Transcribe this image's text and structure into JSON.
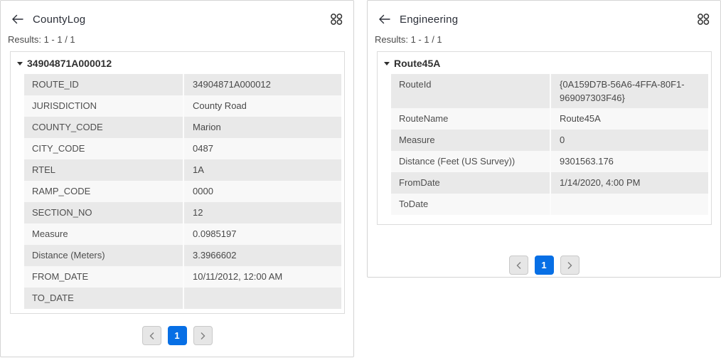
{
  "colors": {
    "accent_blue": "#076fe5",
    "row_shaded": "#e9e9e9",
    "row_plain": "#f8f8f8"
  },
  "panels": {
    "left": {
      "title": "CountyLog",
      "results": "Results: 1 - 1 / 1",
      "feature": {
        "title": "34904871A000012",
        "rows": [
          {
            "label": "ROUTE_ID",
            "value": "34904871A000012"
          },
          {
            "label": "JURISDICTION",
            "value": "County Road"
          },
          {
            "label": "COUNTY_CODE",
            "value": "Marion"
          },
          {
            "label": "CITY_CODE",
            "value": "0487"
          },
          {
            "label": "RTEL",
            "value": "1A"
          },
          {
            "label": "RAMP_CODE",
            "value": "0000"
          },
          {
            "label": "SECTION_NO",
            "value": "12"
          },
          {
            "label": "Measure",
            "value": "0.0985197"
          },
          {
            "label": "Distance (Meters)",
            "value": "3.3966602"
          },
          {
            "label": "FROM_DATE",
            "value": "10/11/2012, 12:00 AM"
          },
          {
            "label": "TO_DATE",
            "value": ""
          }
        ]
      },
      "pagination": {
        "current_page": "1"
      }
    },
    "right": {
      "title": "Engineering",
      "results": "Results: 1 - 1 / 1",
      "feature": {
        "title": "Route45A",
        "rows": [
          {
            "label": "RouteId",
            "value": "{0A159D7B-56A6-4FFA-80F1-969097303F46}"
          },
          {
            "label": "RouteName",
            "value": "Route45A"
          },
          {
            "label": "Measure",
            "value": "0"
          },
          {
            "label": "Distance (Feet (US Survey))",
            "value": "9301563.176"
          },
          {
            "label": "FromDate",
            "value": "1/14/2020, 4:00 PM"
          },
          {
            "label": "ToDate",
            "value": ""
          }
        ]
      },
      "pagination": {
        "current_page": "1"
      }
    }
  }
}
